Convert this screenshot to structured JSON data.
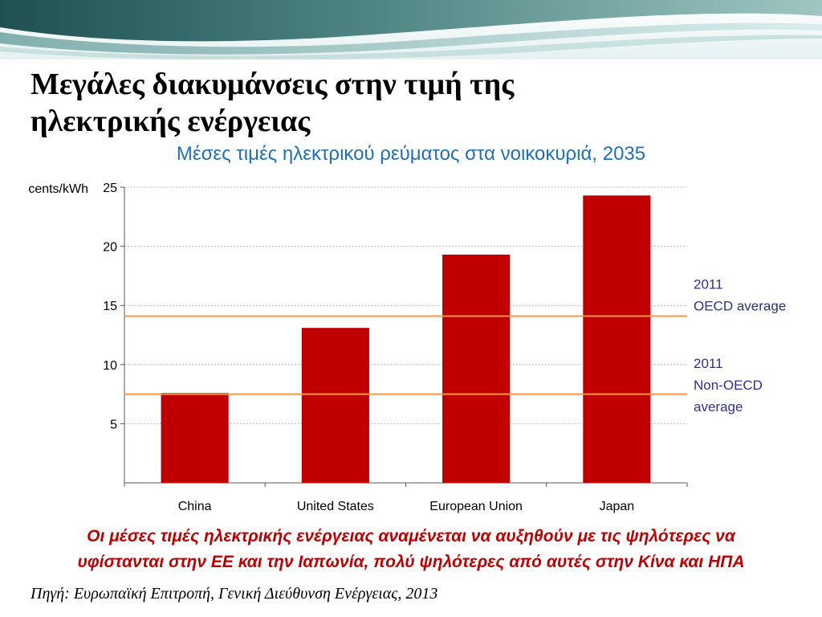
{
  "slide": {
    "title_line1": "Μεγάλες διακυμάνσεις στην τιμή της",
    "title_line2": "ηλεκτρικής ενέργειας",
    "conclusion_line1": "Οι μέσες τιμές ηλεκτρικής ενέργειας αναμένεται να αυξηθούν με τις ψηλότερες να",
    "conclusion_line2": "υφίστανται στην ΕΕ και την Ιαπωνία, πολύ ψηλότερες από αυτές στην Κίνα και ΗΠΑ",
    "source": "Πηγή: Ευρωπαϊκή Επιτροπή, Γενική Διεύθυνση Ενέργειας, 2013"
  },
  "colors": {
    "bar": "#c00000",
    "reference_line": "#f79646",
    "subtitle": "#1f6fbf",
    "annotation": "#2e3192",
    "conclusion": "#c00000",
    "grid": "#a6a6a6",
    "axis": "#595959"
  },
  "chart_data": {
    "type": "bar",
    "title": "Μέσες τιμές ηλεκτρικού ρεύματος στα νοικοκυριά,  2035",
    "ylabel": "cents/kWh",
    "xlabel": "",
    "categories": [
      "China",
      "United States",
      "European Union",
      "Japan"
    ],
    "values": [
      7.6,
      13.1,
      19.3,
      24.3
    ],
    "ylim": [
      0,
      25
    ],
    "yticks": [
      5,
      10,
      15,
      20,
      25
    ],
    "grid": "horizontal dotted",
    "reference_lines": [
      {
        "value": 14.1,
        "label_lines": [
          "2011",
          "OECD average"
        ]
      },
      {
        "value": 7.5,
        "label_lines": [
          "2011",
          "Non-OECD",
          "average"
        ]
      }
    ]
  }
}
